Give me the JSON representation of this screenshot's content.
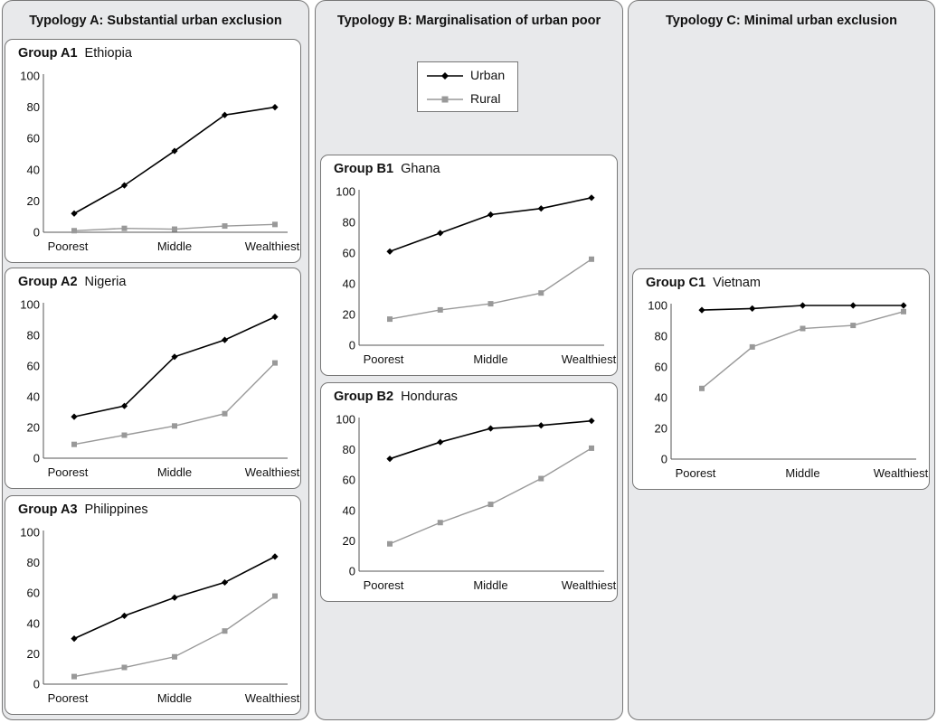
{
  "columns": [
    {
      "title": "Typology A: Substantial urban exclusion"
    },
    {
      "title": "Typology B: Marginalisation of urban poor"
    },
    {
      "title": "Typology C: Minimal urban exclusion"
    }
  ],
  "legend": {
    "urban": "Urban",
    "rural": "Rural"
  },
  "colors": {
    "urban": "#000000",
    "rural": "#999999"
  },
  "chart_data": [
    {
      "type": "line",
      "group": "Group A1",
      "country": "Ethiopia",
      "categories": [
        "Poorest",
        "",
        "Middle",
        "",
        "Wealthiest"
      ],
      "ylim": [
        0,
        100
      ],
      "yticks": [
        "0",
        "20",
        "40",
        "60",
        "80",
        "100"
      ],
      "series": [
        {
          "name": "Urban",
          "values": [
            12,
            30,
            52,
            75,
            80
          ]
        },
        {
          "name": "Rural",
          "values": [
            1,
            2.5,
            2,
            4,
            5
          ]
        }
      ]
    },
    {
      "type": "line",
      "group": "Group A2",
      "country": "Nigeria",
      "categories": [
        "Poorest",
        "",
        "Middle",
        "",
        "Wealthiest"
      ],
      "ylim": [
        0,
        100
      ],
      "yticks": [
        "0",
        "20",
        "40",
        "60",
        "80",
        "100"
      ],
      "series": [
        {
          "name": "Urban",
          "values": [
            27,
            34,
            66,
            77,
            92
          ]
        },
        {
          "name": "Rural",
          "values": [
            9,
            15,
            21,
            29,
            62
          ]
        }
      ]
    },
    {
      "type": "line",
      "group": "Group A3",
      "country": "Philippines",
      "categories": [
        "Poorest",
        "",
        "Middle",
        "",
        "Wealthiest"
      ],
      "ylim": [
        0,
        100
      ],
      "yticks": [
        "0",
        "20",
        "40",
        "60",
        "80",
        "100"
      ],
      "series": [
        {
          "name": "Urban",
          "values": [
            30,
            45,
            57,
            67,
            84
          ]
        },
        {
          "name": "Rural",
          "values": [
            5,
            11,
            18,
            35,
            58
          ]
        }
      ]
    },
    {
      "type": "line",
      "group": "Group B1",
      "country": "Ghana",
      "categories": [
        "Poorest",
        "",
        "Middle",
        "",
        "Wealthiest"
      ],
      "ylim": [
        0,
        100
      ],
      "yticks": [
        "0",
        "20",
        "40",
        "60",
        "80",
        "100"
      ],
      "series": [
        {
          "name": "Urban",
          "values": [
            61,
            73,
            85,
            89,
            96
          ]
        },
        {
          "name": "Rural",
          "values": [
            17,
            23,
            27,
            34,
            56
          ]
        }
      ]
    },
    {
      "type": "line",
      "group": "Group B2",
      "country": "Honduras",
      "categories": [
        "Poorest",
        "",
        "Middle",
        "",
        "Wealthiest"
      ],
      "ylim": [
        0,
        100
      ],
      "yticks": [
        "0",
        "20",
        "40",
        "60",
        "80",
        "100"
      ],
      "series": [
        {
          "name": "Urban",
          "values": [
            74,
            85,
            94,
            96,
            99
          ]
        },
        {
          "name": "Rural",
          "values": [
            18,
            32,
            44,
            61,
            81
          ]
        }
      ]
    },
    {
      "type": "line",
      "group": "Group C1",
      "country": "Vietnam",
      "categories": [
        "Poorest",
        "",
        "Middle",
        "",
        "Wealthiest"
      ],
      "ylim": [
        0,
        100
      ],
      "yticks": [
        "0",
        "20",
        "40",
        "60",
        "80",
        "100"
      ],
      "series": [
        {
          "name": "Urban",
          "values": [
            97,
            98,
            100,
            100,
            100
          ]
        },
        {
          "name": "Rural",
          "values": [
            46,
            73,
            85,
            87,
            96
          ]
        }
      ]
    }
  ]
}
